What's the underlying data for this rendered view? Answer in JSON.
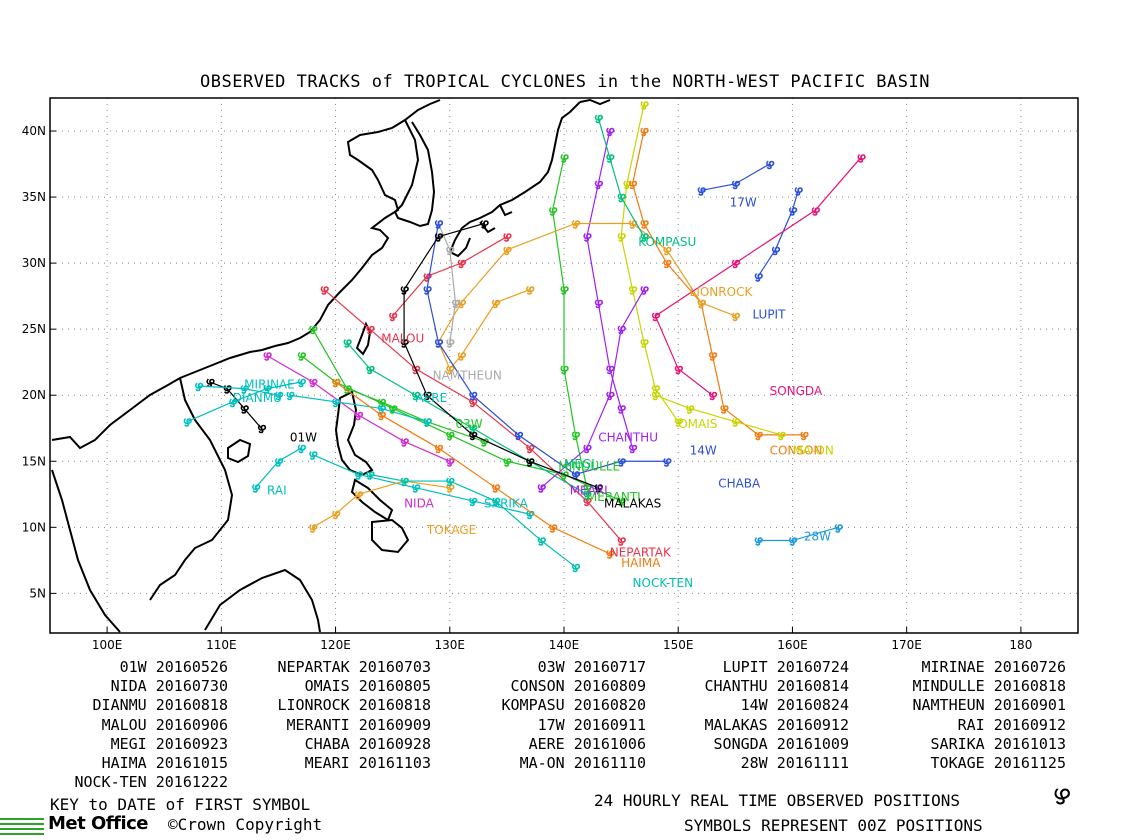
{
  "title": "OBSERVED TRACKS of TROPICAL CYCLONES in the NORTH-WEST PACIFIC BASIN",
  "axes": {
    "lon_range": [
      95,
      185
    ],
    "lat_range": [
      2,
      42.5
    ],
    "lon_ticks": [
      {
        "value": 100,
        "label": "100E"
      },
      {
        "value": 110,
        "label": "110E"
      },
      {
        "value": 120,
        "label": "120E"
      },
      {
        "value": 130,
        "label": "130E"
      },
      {
        "value": 140,
        "label": "140E"
      },
      {
        "value": 150,
        "label": "150E"
      },
      {
        "value": 160,
        "label": "160E"
      },
      {
        "value": 170,
        "label": "170E"
      },
      {
        "value": 180,
        "label": "180"
      }
    ],
    "lat_ticks": [
      {
        "value": 5,
        "label": "5N"
      },
      {
        "value": 10,
        "label": "10N"
      },
      {
        "value": 15,
        "label": "15N"
      },
      {
        "value": 20,
        "label": "20N"
      },
      {
        "value": 25,
        "label": "25N"
      },
      {
        "value": 30,
        "label": "30N"
      },
      {
        "value": 35,
        "label": "35N"
      },
      {
        "value": 40,
        "label": "40N"
      }
    ],
    "grid": "dotted"
  },
  "tracks": [
    {
      "name": "01W",
      "color": "#000000",
      "label_pos": [
        116,
        16.5
      ],
      "points": [
        [
          113.5,
          17.5
        ],
        [
          112,
          19
        ],
        [
          110.5,
          20.5
        ],
        [
          109,
          21
        ]
      ]
    },
    {
      "name": "NEPARTAK",
      "color": "#e8334a",
      "label_pos": [
        144,
        7.8
      ],
      "points": [
        [
          145,
          9
        ],
        [
          142,
          12
        ],
        [
          137,
          16
        ],
        [
          132,
          19.5
        ],
        [
          127,
          22
        ],
        [
          123,
          25
        ],
        [
          119,
          28
        ]
      ]
    },
    {
      "name": "03W",
      "color": "#22c422",
      "label_pos": [
        130.5,
        17.5
      ],
      "points": [
        [
          133,
          16.5
        ],
        [
          128,
          18
        ],
        [
          124,
          19.5
        ],
        [
          121,
          20.5
        ],
        [
          118,
          25
        ]
      ]
    },
    {
      "name": "LUPIT",
      "color": "#2b4fd8",
      "label_pos": [
        156.5,
        25.8
      ],
      "points": [
        [
          157,
          29
        ],
        [
          158.5,
          31
        ],
        [
          160,
          34
        ],
        [
          160.5,
          35.5
        ]
      ]
    },
    {
      "name": "MIRINAE",
      "color": "#00bfbf",
      "label_pos": [
        112,
        20.5
      ],
      "points": [
        [
          117,
          21
        ],
        [
          114,
          20.5
        ],
        [
          111,
          19.5
        ],
        [
          107,
          18
        ]
      ]
    },
    {
      "name": "NIDA",
      "color": "#d02ad0",
      "label_pos": [
        126,
        11.5
      ],
      "points": [
        [
          130,
          15
        ],
        [
          126,
          16.5
        ],
        [
          122,
          18.5
        ],
        [
          118,
          21
        ],
        [
          114,
          23
        ]
      ]
    },
    {
      "name": "OMAIS",
      "color": "#c8d400",
      "label_pos": [
        150,
        17.5
      ],
      "points": [
        [
          150,
          18
        ],
        [
          148,
          20.5
        ],
        [
          147,
          24
        ],
        [
          146,
          28
        ],
        [
          145,
          32
        ],
        [
          145.5,
          36
        ],
        [
          147,
          42
        ]
      ]
    },
    {
      "name": "CONSON",
      "color": "#f07b10",
      "label_pos": [
        158,
        15.5
      ],
      "points": [
        [
          161,
          17
        ],
        [
          157,
          17
        ],
        [
          154,
          19
        ],
        [
          153,
          23
        ],
        [
          152,
          27
        ],
        [
          149,
          30
        ],
        [
          147,
          33
        ],
        [
          146,
          36
        ],
        [
          147,
          40
        ]
      ]
    },
    {
      "name": "CHANTHU",
      "color": "#a020f0",
      "label_pos": [
        143,
        16.5
      ],
      "points": [
        [
          146,
          16
        ],
        [
          145,
          19
        ],
        [
          144,
          22
        ],
        [
          143,
          27
        ],
        [
          142,
          32
        ],
        [
          143,
          36
        ],
        [
          144,
          40
        ]
      ]
    },
    {
      "name": "MINDULLE",
      "color": "#22c422",
      "label_pos": [
        139.5,
        14.3
      ],
      "points": [
        [
          142,
          13
        ],
        [
          141,
          17
        ],
        [
          140,
          22
        ],
        [
          140,
          28
        ],
        [
          139,
          34
        ],
        [
          140,
          38
        ]
      ]
    },
    {
      "name": "DIANMU",
      "color": "#00bfbf",
      "label_pos": [
        111,
        19.5
      ],
      "points": [
        [
          115,
          20
        ],
        [
          112,
          20.5
        ],
        [
          108,
          20.7
        ]
      ]
    },
    {
      "name": "LIONROCK",
      "color": "#e8a020",
      "label_pos": [
        151,
        27.5
      ],
      "points": [
        [
          155,
          26
        ],
        [
          152,
          27
        ],
        [
          149,
          31
        ],
        [
          146,
          33
        ],
        [
          141,
          33
        ],
        [
          135,
          31
        ],
        [
          131,
          27
        ],
        [
          129,
          24
        ],
        [
          130,
          22
        ],
        [
          131,
          23
        ],
        [
          134,
          27
        ],
        [
          137,
          28
        ]
      ]
    },
    {
      "name": "KOMPASU",
      "color": "#00c080",
      "label_pos": [
        146.5,
        31.3
      ],
      "points": [
        [
          147,
          32
        ],
        [
          145,
          35
        ],
        [
          144,
          38
        ],
        [
          143,
          41
        ]
      ]
    },
    {
      "name": "14W",
      "color": "#2b4fd8",
      "label_pos": [
        151,
        15.5
      ],
      "points": [
        [
          149,
          15
        ],
        [
          145,
          15
        ],
        [
          141,
          14
        ]
      ]
    },
    {
      "name": "NAMTHEUN",
      "color": "#aaaaaa",
      "label_pos": [
        128.5,
        21.2
      ],
      "points": [
        [
          130,
          24
        ],
        [
          130.5,
          27
        ],
        [
          130,
          31
        ],
        [
          129,
          33
        ]
      ]
    },
    {
      "name": "MALOU",
      "color": "#e8334a",
      "label_pos": [
        124,
        24
      ],
      "points": [
        [
          125,
          26
        ],
        [
          128,
          29
        ],
        [
          131,
          30
        ],
        [
          135,
          32
        ]
      ]
    },
    {
      "name": "MERANTI",
      "color": "#22c422",
      "label_pos": [
        142,
        12
      ],
      "points": [
        [
          145,
          12
        ],
        [
          140,
          14
        ],
        [
          135,
          15
        ],
        [
          130,
          17
        ],
        [
          125,
          19
        ],
        [
          120,
          21
        ],
        [
          117,
          23
        ]
      ]
    },
    {
      "name": "RAI",
      "color": "#00bfbf",
      "label_pos": [
        114,
        12.5
      ],
      "points": [
        [
          113,
          13
        ],
        [
          115,
          15
        ],
        [
          117,
          16
        ]
      ]
    },
    {
      "name": "MEGI",
      "color": "#00c080",
      "label_pos": [
        140,
        14.5
      ],
      "points": [
        [
          142,
          12.5
        ],
        [
          137,
          15
        ],
        [
          132,
          17.5
        ],
        [
          127,
          20
        ],
        [
          123,
          22
        ],
        [
          121,
          24
        ]
      ]
    },
    {
      "name": "CHABA",
      "color": "#2b4fd8",
      "label_pos": [
        153.5,
        13
      ],
      "points": [
        [
          141,
          14
        ],
        [
          136,
          17
        ],
        [
          132,
          20
        ],
        [
          129,
          24
        ],
        [
          128,
          28
        ],
        [
          129,
          33
        ]
      ]
    },
    {
      "name": "AERE",
      "color": "#00bfbf",
      "label_pos": [
        127,
        19.5
      ],
      "points": [
        [
          128,
          18
        ],
        [
          124,
          19
        ],
        [
          120,
          19.5
        ],
        [
          116,
          20
        ]
      ]
    },
    {
      "name": "SONGDA",
      "color": "#e8117a",
      "label_pos": [
        158,
        20
      ],
      "points": [
        [
          153,
          20
        ],
        [
          150,
          22
        ],
        [
          148,
          26
        ],
        [
          155,
          30
        ],
        [
          162,
          34
        ],
        [
          166,
          38
        ]
      ]
    },
    {
      "name": "SARIKA",
      "color": "#00bfbf",
      "label_pos": [
        133,
        11.5
      ],
      "points": [
        [
          137,
          11
        ],
        [
          132,
          12
        ],
        [
          127,
          13
        ],
        [
          122,
          14
        ],
        [
          118,
          15.5
        ]
      ]
    },
    {
      "name": "HAIMA",
      "color": "#f07b10",
      "label_pos": [
        145,
        7
      ],
      "points": [
        [
          144,
          8
        ],
        [
          139,
          10
        ],
        [
          134,
          13
        ],
        [
          129,
          16
        ],
        [
          124,
          18.5
        ],
        [
          120,
          21
        ]
      ]
    },
    {
      "name": "MEARI",
      "color": "#a020f0",
      "label_pos": [
        140.5,
        12.5
      ],
      "points": [
        [
          138,
          13
        ],
        [
          142,
          16
        ],
        [
          144,
          20
        ],
        [
          145,
          25
        ],
        [
          147,
          28
        ]
      ]
    },
    {
      "name": "MA-ON",
      "color": "#c8d400",
      "label_pos": [
        160,
        15.5
      ],
      "points": [
        [
          159,
          17
        ],
        [
          155,
          18
        ],
        [
          151,
          19
        ],
        [
          148,
          20
        ]
      ]
    },
    {
      "name": "28W",
      "color": "#1e9ad8",
      "label_pos": [
        161,
        9
      ],
      "points": [
        [
          164,
          10
        ],
        [
          160,
          9
        ],
        [
          157,
          9
        ]
      ]
    },
    {
      "name": "TOKAGE",
      "color": "#e8a020",
      "label_pos": [
        128,
        9.5
      ],
      "points": [
        [
          130,
          13
        ],
        [
          126,
          13.5
        ],
        [
          122,
          12.5
        ],
        [
          120,
          11
        ],
        [
          118,
          10
        ]
      ]
    },
    {
      "name": "NOCK-TEN",
      "color": "#00c0b0",
      "label_pos": [
        146,
        5.5
      ],
      "points": [
        [
          141,
          7
        ],
        [
          138,
          9
        ],
        [
          134,
          12
        ],
        [
          130,
          13.5
        ],
        [
          126,
          13.5
        ],
        [
          123,
          14
        ]
      ]
    },
    {
      "name": "17W",
      "color": "#2b4fd8",
      "label_pos": [
        154.5,
        34.3
      ],
      "points": [
        [
          152,
          35.5
        ],
        [
          155,
          36
        ],
        [
          158,
          37.5
        ]
      ]
    },
    {
      "name": "MALAKAS",
      "color": "#000000",
      "label_pos": [
        143.5,
        11.5
      ],
      "points": [
        [
          143,
          13
        ],
        [
          137,
          15
        ],
        [
          132,
          17
        ],
        [
          128,
          20
        ],
        [
          126,
          24
        ],
        [
          126,
          28
        ],
        [
          129,
          32
        ],
        [
          133,
          33
        ]
      ]
    }
  ],
  "key_entries": [
    {
      "name": "01W",
      "date": "20160526"
    },
    {
      "name": "NEPARTAK",
      "date": "20160703"
    },
    {
      "name": "03W",
      "date": "20160717"
    },
    {
      "name": "LUPIT",
      "date": "20160724"
    },
    {
      "name": "MIRINAE",
      "date": "20160726"
    },
    {
      "name": "NIDA",
      "date": "20160730"
    },
    {
      "name": "OMAIS",
      "date": "20160805"
    },
    {
      "name": "CONSON",
      "date": "20160809"
    },
    {
      "name": "CHANTHU",
      "date": "20160814"
    },
    {
      "name": "MINDULLE",
      "date": "20160818"
    },
    {
      "name": "DIANMU",
      "date": "20160818"
    },
    {
      "name": "LIONROCK",
      "date": "20160818"
    },
    {
      "name": "KOMPASU",
      "date": "20160820"
    },
    {
      "name": "14W",
      "date": "20160824"
    },
    {
      "name": "NAMTHEUN",
      "date": "20160901"
    },
    {
      "name": "MALOU",
      "date": "20160906"
    },
    {
      "name": "MERANTI",
      "date": "20160909"
    },
    {
      "name": "17W",
      "date": "20160911"
    },
    {
      "name": "MALAKAS",
      "date": "20160912"
    },
    {
      "name": "RAI",
      "date": "20160912"
    },
    {
      "name": "MEGI",
      "date": "20160923"
    },
    {
      "name": "CHABA",
      "date": "20160928"
    },
    {
      "name": "AERE",
      "date": "20161006"
    },
    {
      "name": "SONGDA",
      "date": "20161009"
    },
    {
      "name": "SARIKA",
      "date": "20161013"
    },
    {
      "name": "HAIMA",
      "date": "20161015"
    },
    {
      "name": "MEARI",
      "date": "20161103"
    },
    {
      "name": "MA-ON",
      "date": "20161110"
    },
    {
      "name": "28W",
      "date": "20161111"
    },
    {
      "name": "TOKAGE",
      "date": "20161125"
    },
    {
      "name": "NOCK-TEN",
      "date": "20161222"
    }
  ],
  "footer": {
    "key_caption": "KEY to DATE of FIRST SYMBOL",
    "positions_caption": "24 HOURLY REAL TIME OBSERVED POSITIONS",
    "symbols_caption": "SYMBOLS REPRESENT 00Z POSITIONS",
    "logo_text": "Met Office",
    "copyright": "©Crown Copyright"
  },
  "symbol_glyph": "ഴ"
}
